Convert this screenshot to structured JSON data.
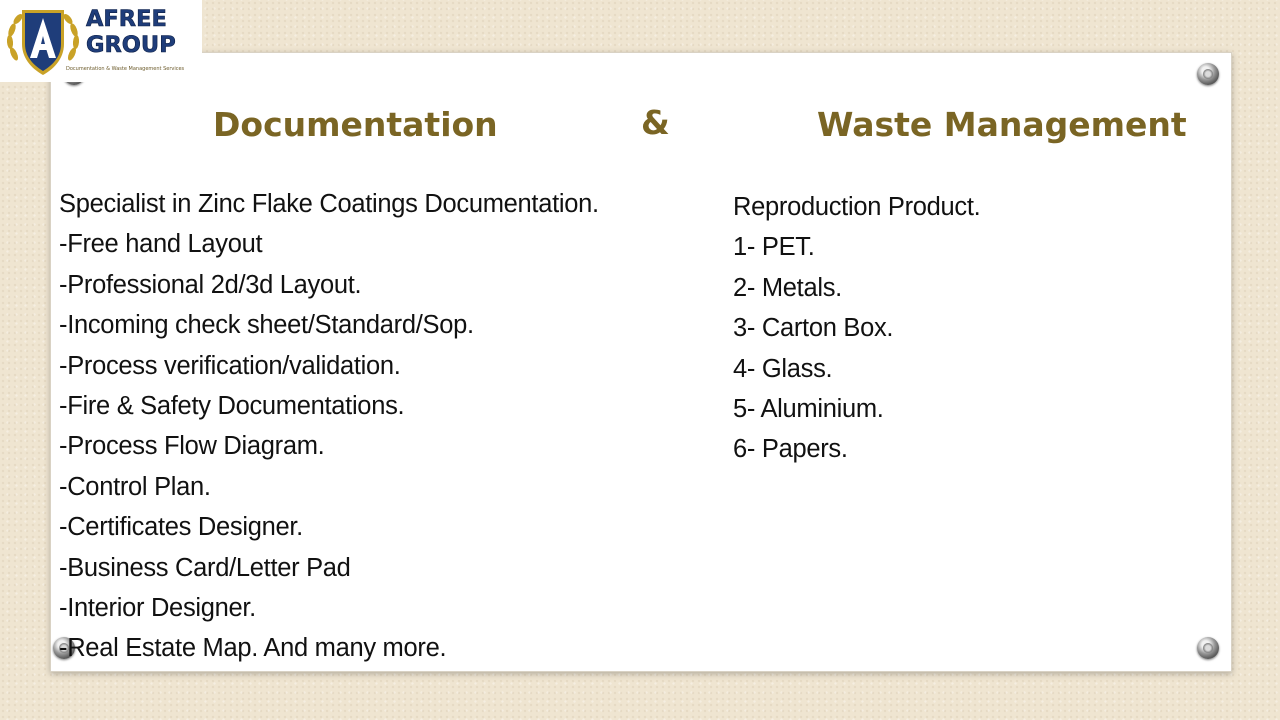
{
  "logo": {
    "name_line1": "AFREE",
    "name_line2": "GROUP",
    "monogram": "A",
    "tagline": "Documentation & Waste Management Services"
  },
  "headings": {
    "left": "Documentation",
    "ampersand": "&",
    "right": "Waste Management"
  },
  "documentation_items": [
    "Specialist in Zinc Flake Coatings Documentation.",
    "-Free hand Layout",
    "-Professional 2d/3d Layout.",
    "-Incoming check sheet/Standard/Sop.",
    "-Process verification/validation.",
    "-Fire & Safety Documentations.",
    "-Process Flow Diagram.",
    "-Control Plan.",
    "-Certificates Designer.",
    "-Business Card/Letter Pad",
    "-Interior Designer.",
    "-Real Estate Map. And many more."
  ],
  "waste_items": [
    "Reproduction Product.",
    "1- PET.",
    "2- Metals.",
    "3- Carton Box.",
    "4- Glass.",
    "5- Aluminium.",
    "6- Papers."
  ],
  "colors": {
    "heading": "#7a6524",
    "logo_blue": "#1f3d7a",
    "logo_gold": "#c9a227",
    "background": "#efe5d1"
  }
}
